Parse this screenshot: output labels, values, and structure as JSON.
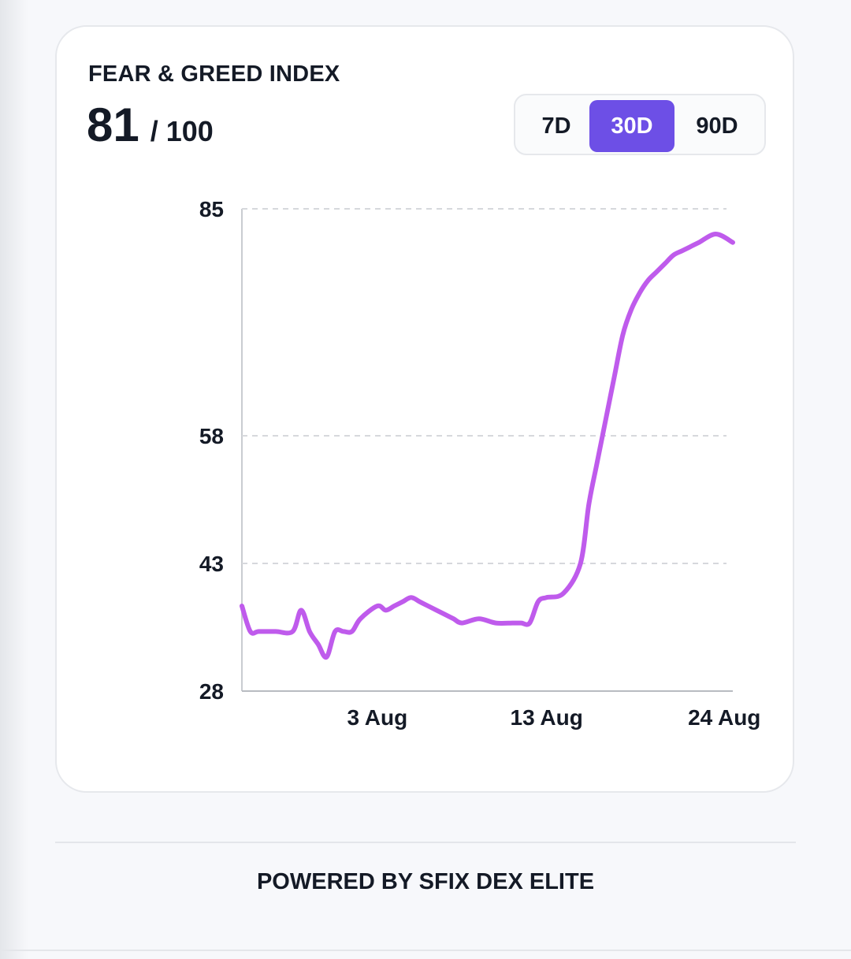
{
  "card": {
    "title": "FEAR & GREED INDEX",
    "score_value": "81",
    "score_max": "/ 100"
  },
  "range_selector": {
    "options": [
      "7D",
      "30D",
      "90D"
    ],
    "selected": "30D"
  },
  "footer": {
    "text": "POWERED BY SFIX DEX ELITE"
  },
  "colors": {
    "line": "#bf5bec",
    "accent": "#6d4fe6",
    "grid": "#d6d8dc"
  },
  "chart_data": {
    "type": "line",
    "title": "",
    "xlabel": "",
    "ylabel": "",
    "ylim": [
      28,
      85
    ],
    "yticks": [
      28,
      43,
      58,
      85
    ],
    "xtick_labels": [
      "3 Aug",
      "13 Aug",
      "24 Aug"
    ],
    "xtick_positions": [
      8,
      18,
      28.5
    ],
    "xlim": [
      0,
      29
    ],
    "grid": true,
    "series": [
      {
        "x": [
          0,
          0.5,
          1,
          2,
          3,
          3.5,
          4,
          4.5,
          5,
          5.5,
          6,
          6.5,
          7,
          8,
          8.5,
          9,
          9.5,
          10,
          10.5,
          11,
          12,
          12.5,
          13,
          14,
          15,
          16,
          16.5,
          17,
          17.5,
          18,
          19,
          20,
          20.5,
          21,
          21.5,
          22,
          22.5,
          23,
          23.5,
          24,
          24.5,
          25,
          25.5,
          26,
          26.5,
          27,
          28,
          29
        ],
        "y": [
          38,
          35,
          35,
          35,
          35,
          37.5,
          35,
          33.5,
          32,
          35,
          35,
          35,
          36.5,
          38,
          37.5,
          38,
          38.5,
          39,
          38.5,
          38,
          37,
          36.5,
          36,
          36.5,
          36,
          36,
          36,
          36,
          38.5,
          39,
          39.5,
          43,
          50,
          55,
          60,
          65,
          70,
          73,
          75,
          76.5,
          77.5,
          78.5,
          79.5,
          80,
          80.5,
          81,
          82,
          81
        ]
      }
    ]
  }
}
